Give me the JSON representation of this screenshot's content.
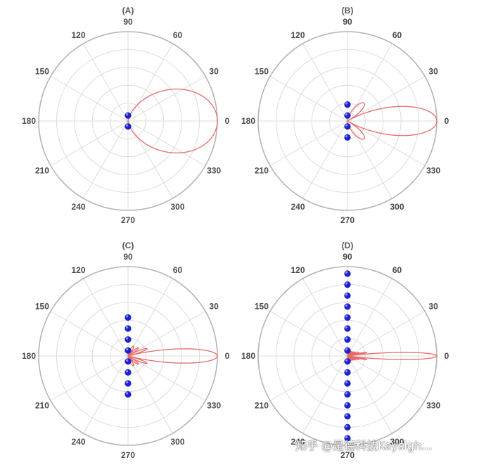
{
  "watermark": "知乎 @是德科技Keysigh...",
  "colors": {
    "pattern": "#e86a6a",
    "element": "#1c22c8",
    "grid": "#dcdcdc",
    "rim": "#b4b4b4"
  },
  "chart_data": [
    {
      "type": "polar",
      "panel": "(A)",
      "angle_ticks": [
        0,
        30,
        60,
        90,
        120,
        150,
        180,
        210,
        240,
        270,
        300,
        330
      ],
      "radial_rings": 4,
      "array_elements": 2,
      "beam": {
        "direction_deg": 0,
        "main_lobe_half_width_deg": 90,
        "side_lobes": false
      }
    },
    {
      "type": "polar",
      "panel": "(B)",
      "angle_ticks": [
        0,
        30,
        60,
        90,
        120,
        150,
        180,
        210,
        240,
        270,
        300,
        330
      ],
      "radial_rings": 4,
      "array_elements": 4,
      "beam": {
        "direction_deg": 0,
        "main_lobe_half_width_deg": 30,
        "side_lobes": true
      }
    },
    {
      "type": "polar",
      "panel": "(C)",
      "angle_ticks": [
        0,
        30,
        60,
        90,
        120,
        150,
        180,
        210,
        240,
        270,
        300,
        330
      ],
      "radial_rings": 4,
      "array_elements": 8,
      "beam": {
        "direction_deg": 0,
        "main_lobe_half_width_deg": 14.5,
        "side_lobes": true
      }
    },
    {
      "type": "polar",
      "panel": "(D)",
      "angle_ticks": [
        0,
        30,
        60,
        90,
        120,
        150,
        180,
        210,
        240,
        270,
        300,
        330
      ],
      "radial_rings": 4,
      "array_elements": 16,
      "beam": {
        "direction_deg": 0,
        "main_lobe_half_width_deg": 7.2,
        "side_lobes": true
      }
    }
  ]
}
